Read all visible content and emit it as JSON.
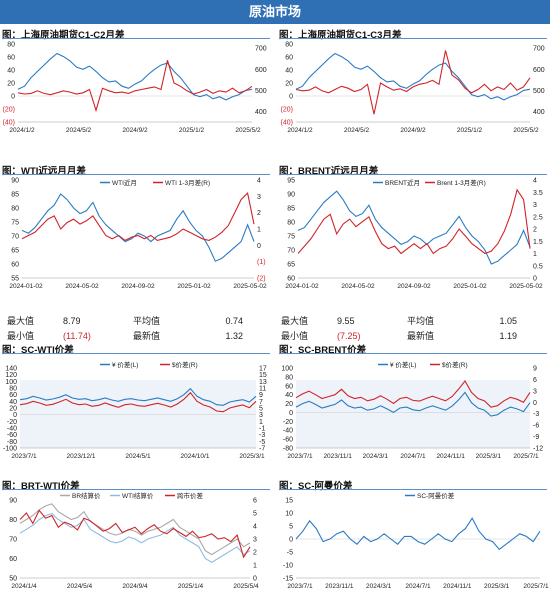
{
  "banner": "原油市场",
  "panels": [
    {
      "title": "图：上海原油期货C1-C2月差"
    },
    {
      "title": "图：上海原油期货C1-C3月差"
    },
    {
      "title": "图：WTI近远月月差"
    },
    {
      "title": "图：BRENT近远月月差"
    },
    {
      "title": "图：SC-WTI价差"
    },
    {
      "title": "图：SC-BRENT价差"
    },
    {
      "title": "图：BRT-WTI价差"
    },
    {
      "title": "图：SC-阿曼价差"
    }
  ],
  "wti_stats": {
    "r1": [
      "最大值",
      "8.79",
      "平均值",
      "0.74"
    ],
    "r2": [
      "最小值",
      "(11.74)",
      "最新值",
      "1.32"
    ]
  },
  "brent_stats": {
    "r1": [
      "最大值",
      "9.55",
      "平均值",
      "1.05"
    ],
    "r2": [
      "最小值",
      "(7.25)",
      "最新值",
      "1.19"
    ]
  },
  "colors": {
    "banner": "#2f6fb3",
    "blue": "#2a7bc4",
    "red": "#d0242b",
    "gray": "#a8a8a8",
    "light_blue": "#8fbce0"
  },
  "chart_data": [
    {
      "type": "line",
      "title": "图：上海原油期货C1-C2月差",
      "x_ticks": [
        "2024/1/2",
        "2024/5/2",
        "2024/9/2",
        "2025/1/2",
        "2025/5/2"
      ],
      "y_left_ticks": [
        "80",
        "60",
        "40",
        "20",
        "0",
        "(20)",
        "(40)"
      ],
      "ylim_left": [
        -40,
        80
      ],
      "y_right_ticks": [
        "700",
        "600",
        "500",
        "400"
      ],
      "ylim_right": [
        350,
        720
      ],
      "series": [
        {
          "color": "blue",
          "axis": "right",
          "values": [
            505,
            520,
            560,
            590,
            620,
            650,
            675,
            660,
            640,
            610,
            600,
            615,
            590,
            560,
            540,
            545,
            520,
            510,
            530,
            545,
            575,
            600,
            620,
            630,
            590,
            560,
            520,
            480,
            470,
            480,
            460,
            470,
            455,
            470,
            480,
            500,
            505
          ]
        },
        {
          "color": "red",
          "axis": "left",
          "values": [
            5,
            3,
            4,
            8,
            4,
            2,
            5,
            8,
            6,
            3,
            5,
            10,
            -22,
            12,
            8,
            5,
            6,
            4,
            8,
            10,
            12,
            14,
            10,
            55,
            20,
            15,
            8,
            3,
            6,
            10,
            4,
            8,
            6,
            12,
            5,
            8,
            15
          ]
        }
      ]
    },
    {
      "type": "line",
      "title": "图：上海原油期货C1-C3月差",
      "x_ticks": [
        "2024/1/2",
        "2024/5/2",
        "2024/9/2",
        "2025/1/2",
        "2025/5/2"
      ],
      "y_left_ticks": [
        "80",
        "60",
        "40",
        "20",
        "0",
        "(20)",
        "(40)"
      ],
      "ylim_left": [
        -40,
        80
      ],
      "y_right_ticks": [
        "700",
        "600",
        "500",
        "400"
      ],
      "ylim_right": [
        350,
        720
      ],
      "series": [
        {
          "color": "blue",
          "axis": "right",
          "values": [
            505,
            520,
            560,
            590,
            620,
            650,
            675,
            660,
            640,
            610,
            600,
            615,
            590,
            560,
            540,
            545,
            520,
            510,
            530,
            545,
            575,
            600,
            620,
            630,
            590,
            560,
            520,
            480,
            470,
            480,
            460,
            470,
            455,
            470,
            480,
            500,
            505
          ]
        },
        {
          "color": "red",
          "axis": "left",
          "values": [
            10,
            8,
            9,
            14,
            8,
            5,
            10,
            15,
            12,
            7,
            10,
            18,
            -28,
            20,
            14,
            9,
            11,
            7,
            14,
            18,
            20,
            24,
            18,
            70,
            32,
            25,
            12,
            5,
            10,
            18,
            8,
            14,
            10,
            20,
            9,
            14,
            28
          ]
        }
      ]
    },
    {
      "type": "line",
      "title": "图：WTI近远月月差",
      "x_ticks": [
        "2024-01-02",
        "2024-05-02",
        "2024-09-02",
        "2025-01-02",
        "2025-05-02"
      ],
      "y_left_ticks": [
        "90",
        "85",
        "80",
        "75",
        "70",
        "65",
        "60",
        "55"
      ],
      "ylim_left": [
        55,
        90
      ],
      "y_right_ticks": [
        "4",
        "3",
        "2",
        "1",
        "0",
        "(1)",
        "(2)"
      ],
      "ylim_right": [
        -2,
        4
      ],
      "series": [
        {
          "name": "WTI近月",
          "color": "blue",
          "axis": "left",
          "values": [
            72,
            71,
            73,
            76,
            79,
            81,
            85,
            83,
            80,
            78,
            79,
            82,
            77,
            74,
            72,
            70,
            68,
            69,
            71,
            70,
            68,
            70,
            71,
            72,
            76,
            79,
            75,
            72,
            70,
            66,
            61,
            62,
            64,
            66,
            68,
            74,
            68
          ]
        },
        {
          "name": "WTI 1-3月差(R)",
          "color": "red",
          "axis": "right",
          "values": [
            0.4,
            0.6,
            0.8,
            1.2,
            1.6,
            1.8,
            1.0,
            1.4,
            1.6,
            1.3,
            1.5,
            1.8,
            1.2,
            0.6,
            0.4,
            0.6,
            0.3,
            0.5,
            0.6,
            0.4,
            0.6,
            0.3,
            0.4,
            0.5,
            0.7,
            1.0,
            0.8,
            0.6,
            0.4,
            0.3,
            0.5,
            0.8,
            1.2,
            2.0,
            2.8,
            3.2,
            1.3
          ]
        }
      ]
    },
    {
      "type": "line",
      "title": "图：BRENT近远月月差",
      "x_ticks": [
        "2024-01-02",
        "2024-05-02",
        "2024-09-02",
        "2025-01-02",
        "2025-05-02"
      ],
      "y_left_ticks": [
        "95",
        "90",
        "85",
        "80",
        "75",
        "70",
        "65",
        "60"
      ],
      "ylim_left": [
        60,
        95
      ],
      "y_right_ticks": [
        "4",
        "3.5",
        "3",
        "2.5",
        "2",
        "1.5",
        "1",
        "0.5",
        "0"
      ],
      "ylim_right": [
        0,
        4
      ],
      "series": [
        {
          "name": "BRENT近月",
          "color": "blue",
          "axis": "left",
          "values": [
            77,
            78,
            81,
            84,
            87,
            89,
            91,
            88,
            84,
            82,
            83,
            86,
            81,
            78,
            76,
            74,
            72,
            73,
            75,
            74,
            72,
            74,
            75,
            76,
            79,
            82,
            78,
            75,
            73,
            70,
            65,
            66,
            68,
            70,
            72,
            77,
            71
          ]
        },
        {
          "name": "Brent 1-3月差(R)",
          "color": "red",
          "axis": "right",
          "values": [
            1.0,
            1.3,
            1.6,
            2.0,
            2.4,
            2.6,
            1.8,
            2.2,
            2.4,
            2.1,
            2.3,
            2.5,
            1.9,
            1.4,
            1.2,
            1.3,
            1.0,
            1.2,
            1.4,
            1.2,
            1.4,
            1.0,
            1.2,
            1.3,
            1.6,
            2.0,
            1.7,
            1.4,
            1.2,
            1.0,
            1.1,
            1.4,
            1.9,
            2.6,
            3.6,
            3.2,
            1.2
          ]
        }
      ]
    },
    {
      "type": "line",
      "title": "图：SC-WTI价差",
      "x_ticks": [
        "2023/7/1",
        "2023/12/1",
        "2024/5/1",
        "2024/10/1",
        "2025/3/1"
      ],
      "y_left_ticks": [
        "140",
        "120",
        "100",
        "80",
        "60",
        "40",
        "20",
        "0",
        "-20",
        "-40",
        "-60",
        "-80",
        "-100"
      ],
      "ylim_left": [
        -100,
        140
      ],
      "y_right_ticks": [
        "17",
        "15",
        "13",
        "11",
        "9",
        "7",
        "5",
        "3",
        "1",
        "-1",
        "-3",
        "-5",
        "-7"
      ],
      "ylim_right": [
        -7,
        17
      ],
      "series": [
        {
          "name": "¥ 价差(L)",
          "color": "blue",
          "axis": "left",
          "values": [
            45,
            48,
            55,
            50,
            44,
            47,
            52,
            60,
            50,
            46,
            48,
            42,
            45,
            50,
            44,
            40,
            46,
            48,
            44,
            42,
            46,
            50,
            45,
            40,
            48,
            60,
            78,
            55,
            45,
            40,
            30,
            28,
            38,
            42,
            45,
            38,
            55
          ]
        },
        {
          "name": "$价差(R)",
          "color": "red",
          "axis": "right",
          "values": [
            6,
            6.3,
            7,
            6.5,
            5.8,
            6.1,
            6.8,
            7.6,
            6.5,
            6,
            6.2,
            5.5,
            5.8,
            6.5,
            5.8,
            5.2,
            6,
            6.2,
            5.7,
            5.5,
            6,
            6.4,
            5.9,
            5.3,
            6.2,
            7.6,
            9.6,
            7,
            5.9,
            5.3,
            4.1,
            3.9,
            5,
            5.5,
            5.9,
            5.1,
            7
          ]
        }
      ]
    },
    {
      "type": "line",
      "title": "图：SC-BRENT价差",
      "x_ticks": [
        "2023/7/1",
        "2023/11/1",
        "2024/3/1",
        "2024/7/1",
        "2024/11/1",
        "2025/3/1",
        "2025/7/1"
      ],
      "y_left_ticks": [
        "100",
        "80",
        "60",
        "40",
        "20",
        "0",
        "-20",
        "-40",
        "-60",
        "-80"
      ],
      "ylim_left": [
        -80,
        100
      ],
      "y_right_ticks": [
        "9",
        "6",
        "3",
        "0",
        "-3",
        "-6",
        "-9",
        "-12"
      ],
      "ylim_right": [
        -12,
        9
      ],
      "series": [
        {
          "name": "¥ 价差(L)",
          "color": "blue",
          "axis": "left",
          "values": [
            12,
            20,
            25,
            18,
            10,
            14,
            18,
            28,
            15,
            10,
            12,
            5,
            8,
            15,
            8,
            0,
            10,
            12,
            6,
            4,
            10,
            15,
            10,
            5,
            14,
            28,
            45,
            22,
            10,
            5,
            -8,
            -5,
            5,
            12,
            8,
            2,
            22
          ]
        },
        {
          "name": "$价差(R)",
          "color": "red",
          "axis": "right",
          "values": [
            1.2,
            2.2,
            2.9,
            2,
            1,
            1.5,
            2,
            3.4,
            1.7,
            1,
            1.3,
            0.4,
            0.8,
            1.7,
            0.8,
            -0.3,
            1,
            1.3,
            0.5,
            0.3,
            1,
            1.6,
            1,
            0.4,
            1.5,
            3.4,
            5.6,
            2.6,
            1,
            0.4,
            -1.3,
            -0.9,
            0.4,
            1.3,
            0.8,
            0,
            2.6
          ]
        }
      ]
    },
    {
      "type": "line",
      "title": "图：BRT-WTI价差",
      "x_ticks": [
        "2024/1/4",
        "2024/5/4",
        "2024/9/4",
        "2025/1/4",
        "2025/5/4"
      ],
      "y_left_ticks": [
        "90",
        "80",
        "70",
        "60",
        "50"
      ],
      "ylim_left": [
        50,
        90
      ],
      "y_right_ticks": [
        "6",
        "5",
        "4",
        "3",
        "2",
        "1",
        "0"
      ],
      "ylim_right": [
        0,
        6
      ],
      "series": [
        {
          "name": "BR结算价",
          "color": "gray",
          "axis": "left",
          "values": [
            78,
            80,
            82,
            85,
            87,
            88,
            84,
            82,
            80,
            81,
            84,
            79,
            77,
            75,
            73,
            72,
            73,
            75,
            74,
            72,
            74,
            75,
            76,
            78,
            80,
            76,
            74,
            72,
            70,
            64,
            62,
            64,
            66,
            68,
            70,
            66,
            68
          ]
        },
        {
          "name": "WTI结算价",
          "color": "light_blue",
          "axis": "left",
          "values": [
            73,
            75,
            77,
            80,
            82,
            83,
            80,
            78,
            76,
            77,
            80,
            75,
            73,
            71,
            69,
            68,
            69,
            71,
            70,
            68,
            70,
            71,
            72,
            74,
            76,
            72,
            70,
            68,
            66,
            60,
            58,
            60,
            62,
            64,
            66,
            62,
            64
          ]
        },
        {
          "name": "跨市价差",
          "color": "red",
          "axis": "right",
          "values": [
            4.5,
            5,
            4.2,
            5.2,
            4.6,
            4.8,
            3.9,
            4.3,
            4.1,
            3.7,
            4.6,
            4.4,
            4,
            3.6,
            3.8,
            4.2,
            3.5,
            3.7,
            3.9,
            3.4,
            3.8,
            4.1,
            3.6,
            3.4,
            3.8,
            3.5,
            3.2,
            3.6,
            3.1,
            3.2,
            3.4,
            3,
            3.1,
            2.8,
            3.3,
            1.6,
            2.4
          ]
        }
      ]
    },
    {
      "type": "line",
      "title": "图：SC-阿曼价差",
      "x_ticks": [
        "2023/7/1",
        "2023/11/1",
        "2024/3/1",
        "2024/7/1",
        "2024/11/1",
        "2025/3/1",
        "2025/7/1"
      ],
      "y_left_ticks": [
        "15",
        "10",
        "5",
        "0",
        "-5",
        "-10",
        "-15"
      ],
      "ylim_left": [
        -15,
        15
      ],
      "series": [
        {
          "name": "SC-阿曼价差",
          "color": "blue",
          "axis": "left",
          "values": [
            0,
            3,
            7,
            4,
            -1,
            0,
            2,
            3,
            0,
            -2,
            1,
            -1,
            0,
            2,
            0,
            -2,
            1,
            1,
            -1,
            -2,
            0,
            2,
            0,
            -1,
            2,
            4,
            8,
            3,
            0,
            -1,
            -4,
            -2,
            0,
            2,
            1,
            -1,
            3
          ]
        }
      ]
    }
  ]
}
